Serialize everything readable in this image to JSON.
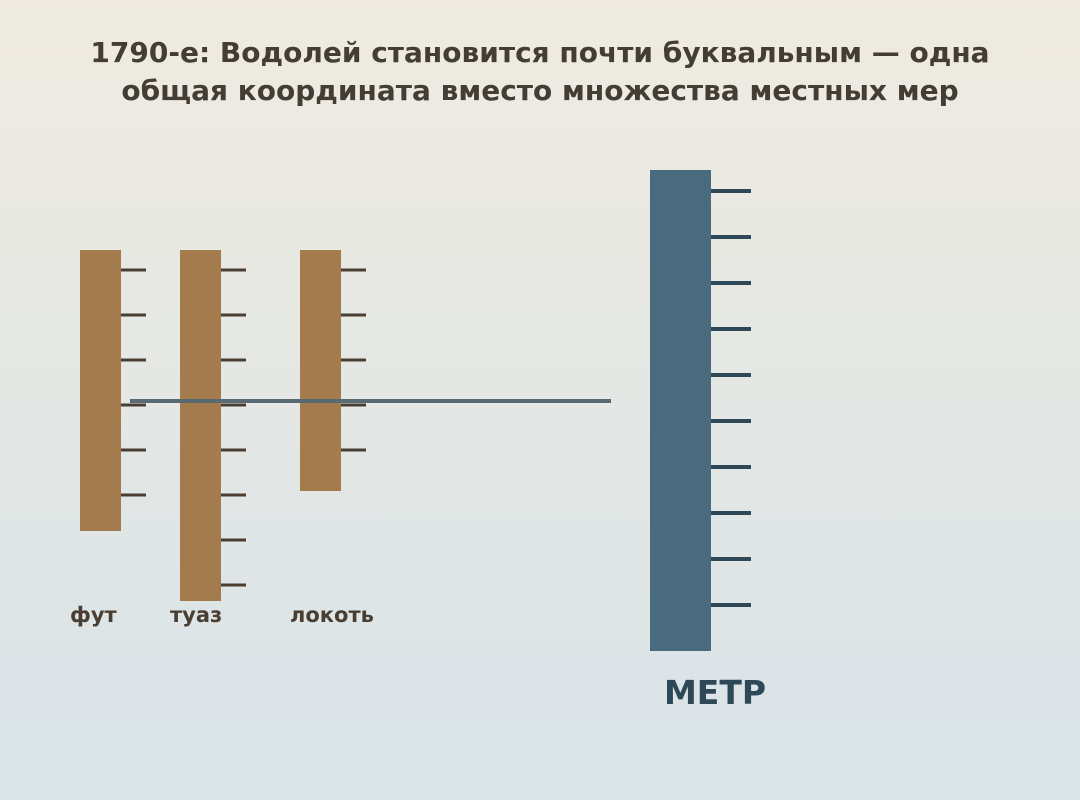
{
  "title": "1790-е: Водолей становится почти буквальным — одна общая координата вместо множества местных мер",
  "local_measures": [
    {
      "label": "фут"
    },
    {
      "label": "туаз"
    },
    {
      "label": "локоть"
    }
  ],
  "unified_measure": {
    "label": "МЕТР"
  }
}
